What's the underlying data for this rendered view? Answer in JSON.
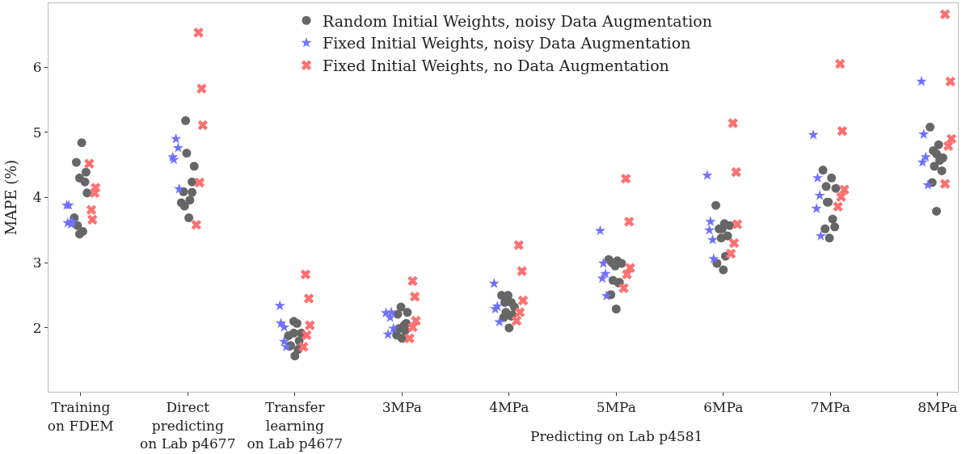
{
  "chart_data": {
    "type": "scatter",
    "ylabel": "MAPE (%)",
    "xlim": [
      -0.3,
      8.19
    ],
    "xticks": [
      {
        "value": 0,
        "label": "Training\non FDEM"
      },
      {
        "value": 1,
        "label": "Direct\npredicting\non Lab p4677"
      },
      {
        "value": 2,
        "label": "Transfer\nlearning\non Lab p4677"
      },
      {
        "value": 3,
        "label": "3MPa"
      },
      {
        "value": 4,
        "label": "4MPa"
      },
      {
        "value": 5,
        "label": "5MPa"
      },
      {
        "value": 6,
        "label": "6MPa"
      },
      {
        "value": 7,
        "label": "7MPa"
      },
      {
        "value": 8,
        "label": "8MPa"
      }
    ],
    "ylim": [
      1.02,
      6.98
    ],
    "yticks": [
      2,
      3,
      4,
      5,
      6
    ],
    "legend": "top",
    "annotations": [
      "Predicting on Lab p4581"
    ],
    "series": [
      {
        "name": "Random Initial Weights, noisy Data Augmentation",
        "color": "#666666",
        "marker": "circle",
        "x": [
          0.01,
          -0.04,
          0.05,
          -0.01,
          0.04,
          0.06,
          -0.06,
          -0.03,
          0.02,
          -0.01,
          0.98,
          0.99,
          1.06,
          1.04,
          0.96,
          1.04,
          1.02,
          0.94,
          0.97,
          1.01,
          1.99,
          2.02,
          1.94,
          1.99,
          2.06,
          2.04,
          1.96,
          1.95,
          2.03,
          2.0,
          2.99,
          2.96,
          3.05,
          3.04,
          3.02,
          2.97,
          2.95,
          3.03,
          2.95,
          3.0,
          3.93,
          3.99,
          3.96,
          4.02,
          4.05,
          3.97,
          4.03,
          4.02,
          3.95,
          4.0,
          4.93,
          5.01,
          5.05,
          4.96,
          4.99,
          4.97,
          5.03,
          5.02,
          4.95,
          5.0,
          5.93,
          6.01,
          6.06,
          5.96,
          5.99,
          5.98,
          6.04,
          6.02,
          5.94,
          6.0,
          6.93,
          7.01,
          6.96,
          7.05,
          6.98,
          6.97,
          7.02,
          7.04,
          6.95,
          6.99,
          7.93,
          8.01,
          7.96,
          7.99,
          8.05,
          8.02,
          7.97,
          8.04,
          7.95,
          7.99
        ],
        "values": [
          4.84,
          4.54,
          4.39,
          4.3,
          4.24,
          4.07,
          3.69,
          3.57,
          3.48,
          3.44,
          5.18,
          4.68,
          4.48,
          4.24,
          4.09,
          4.08,
          3.96,
          3.92,
          3.87,
          3.69,
          2.1,
          2.07,
          1.88,
          1.92,
          1.92,
          1.8,
          1.73,
          1.72,
          1.67,
          1.57,
          2.32,
          2.21,
          2.24,
          2.07,
          2.04,
          1.99,
          1.96,
          1.96,
          1.89,
          1.84,
          2.5,
          2.5,
          2.39,
          2.39,
          2.32,
          2.24,
          2.2,
          2.18,
          2.16,
          2.0,
          3.05,
          3.03,
          2.99,
          3.0,
          2.95,
          2.73,
          2.7,
          2.69,
          2.51,
          2.29,
          3.88,
          3.6,
          3.57,
          3.52,
          3.52,
          3.38,
          3.41,
          3.1,
          2.99,
          2.89,
          4.42,
          4.3,
          4.17,
          4.14,
          3.93,
          3.93,
          3.67,
          3.55,
          3.52,
          3.38,
          5.08,
          4.81,
          4.72,
          4.67,
          4.61,
          4.57,
          4.48,
          4.41,
          4.23,
          3.79
        ]
      },
      {
        "name": "Fixed Initial Weights, noisy Data Augmentation",
        "color": "#7070ff",
        "marker": "star",
        "x": [
          -0.13,
          -0.11,
          -0.12,
          -0.09,
          -0.08,
          0.89,
          0.91,
          0.86,
          0.87,
          0.92,
          1.86,
          1.87,
          1.9,
          1.9,
          1.92,
          2.85,
          2.9,
          2.89,
          2.92,
          2.87,
          3.86,
          3.89,
          3.87,
          3.91,
          4.85,
          4.88,
          4.9,
          4.87,
          4.91,
          5.85,
          5.88,
          5.87,
          5.9,
          5.91,
          6.84,
          6.88,
          6.9,
          6.87,
          6.91,
          7.85,
          7.87,
          7.89,
          7.86,
          7.91
        ],
        "values": [
          3.88,
          3.88,
          3.61,
          3.59,
          3.63,
          4.9,
          4.76,
          4.62,
          4.58,
          4.13,
          2.34,
          2.07,
          2.01,
          1.79,
          1.71,
          2.23,
          2.24,
          2.16,
          1.99,
          1.9,
          2.68,
          2.33,
          2.29,
          2.09,
          3.49,
          2.99,
          2.83,
          2.76,
          2.49,
          4.34,
          3.63,
          3.5,
          3.35,
          3.06,
          4.96,
          4.3,
          4.03,
          3.83,
          3.41,
          5.78,
          4.97,
          4.62,
          4.54,
          4.19
        ]
      },
      {
        "name": "Fixed Initial Weights, no Data Augmentation",
        "color": "#ff7070",
        "marker": "cross",
        "x": [
          0.08,
          0.14,
          0.13,
          0.1,
          0.11,
          1.1,
          1.13,
          1.14,
          1.11,
          1.08,
          2.1,
          2.13,
          2.14,
          2.11,
          2.08,
          3.1,
          3.12,
          3.13,
          3.1,
          3.07,
          4.09,
          4.12,
          4.13,
          4.1,
          4.07,
          5.09,
          5.12,
          5.13,
          5.1,
          5.07,
          6.09,
          6.12,
          6.13,
          6.1,
          6.07,
          7.09,
          7.11,
          7.13,
          7.1,
          7.07,
          8.07,
          8.12,
          8.13,
          8.1,
          8.07
        ],
        "values": [
          4.52,
          4.15,
          4.07,
          3.81,
          3.66,
          6.53,
          5.67,
          5.11,
          4.23,
          3.58,
          2.82,
          2.45,
          2.04,
          1.89,
          1.71,
          2.72,
          2.48,
          2.11,
          2.01,
          1.84,
          3.27,
          2.87,
          2.42,
          2.24,
          2.11,
          4.29,
          3.63,
          2.92,
          2.82,
          2.61,
          5.14,
          4.39,
          3.59,
          3.3,
          3.14,
          6.05,
          5.02,
          4.12,
          4.01,
          3.86,
          6.81,
          5.78,
          4.9,
          4.79,
          4.21
        ]
      }
    ]
  }
}
